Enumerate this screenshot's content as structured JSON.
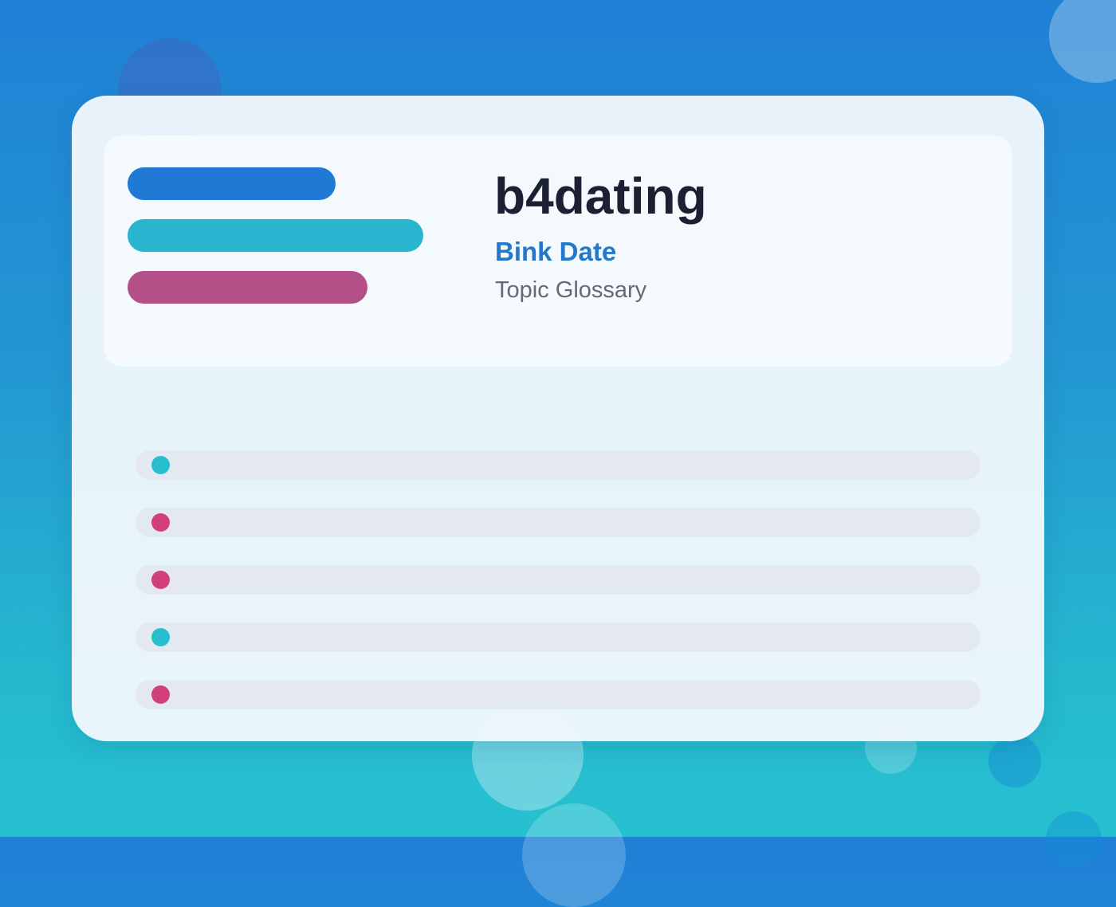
{
  "header": {
    "title": "b4dating",
    "subtitle": "Bink Date",
    "caption": "Topic Glossary"
  },
  "colors": {
    "accent_blue": "#2079d5",
    "accent_cyan": "#29b5cf",
    "accent_pink": "#b44f88",
    "dot_cyan": "#27bfd0",
    "dot_pink": "#d23f7b",
    "title_text": "#1b2133",
    "subtitle_text": "#2477c9",
    "caption_text": "#636a75",
    "row_background": "#e3e8f1"
  },
  "list": {
    "rows": [
      {
        "marker": "cyan"
      },
      {
        "marker": "pink"
      },
      {
        "marker": "pink"
      },
      {
        "marker": "cyan"
      },
      {
        "marker": "pink"
      }
    ]
  }
}
